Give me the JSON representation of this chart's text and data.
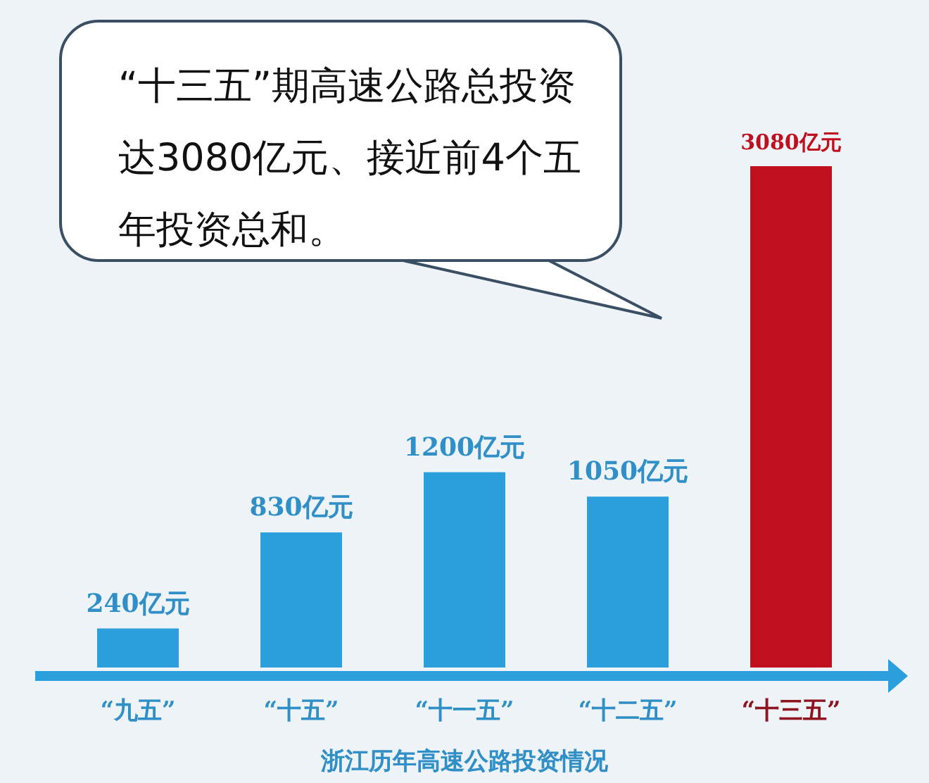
{
  "chart_data": {
    "type": "bar",
    "title": "浙江历年高速公路投资情况",
    "categories": [
      "“九五”",
      "“十五”",
      "“十一五”",
      "“十二五”",
      "“十三五”"
    ],
    "values": [
      240,
      830,
      1200,
      1050,
      3080
    ],
    "colors": [
      "#2b9fdc",
      "#2b9fdc",
      "#2b9fdc",
      "#2b9fdc",
      "#c0101f"
    ],
    "value_labels": [
      "240亿元",
      "830亿元",
      "1200亿元",
      "1050亿元",
      "3080亿元"
    ],
    "annotations": [
      "“十三五”期高速公路总投资达3080亿元、接近前4个五年投资总和。"
    ],
    "grid": false,
    "legend": false
  }
}
